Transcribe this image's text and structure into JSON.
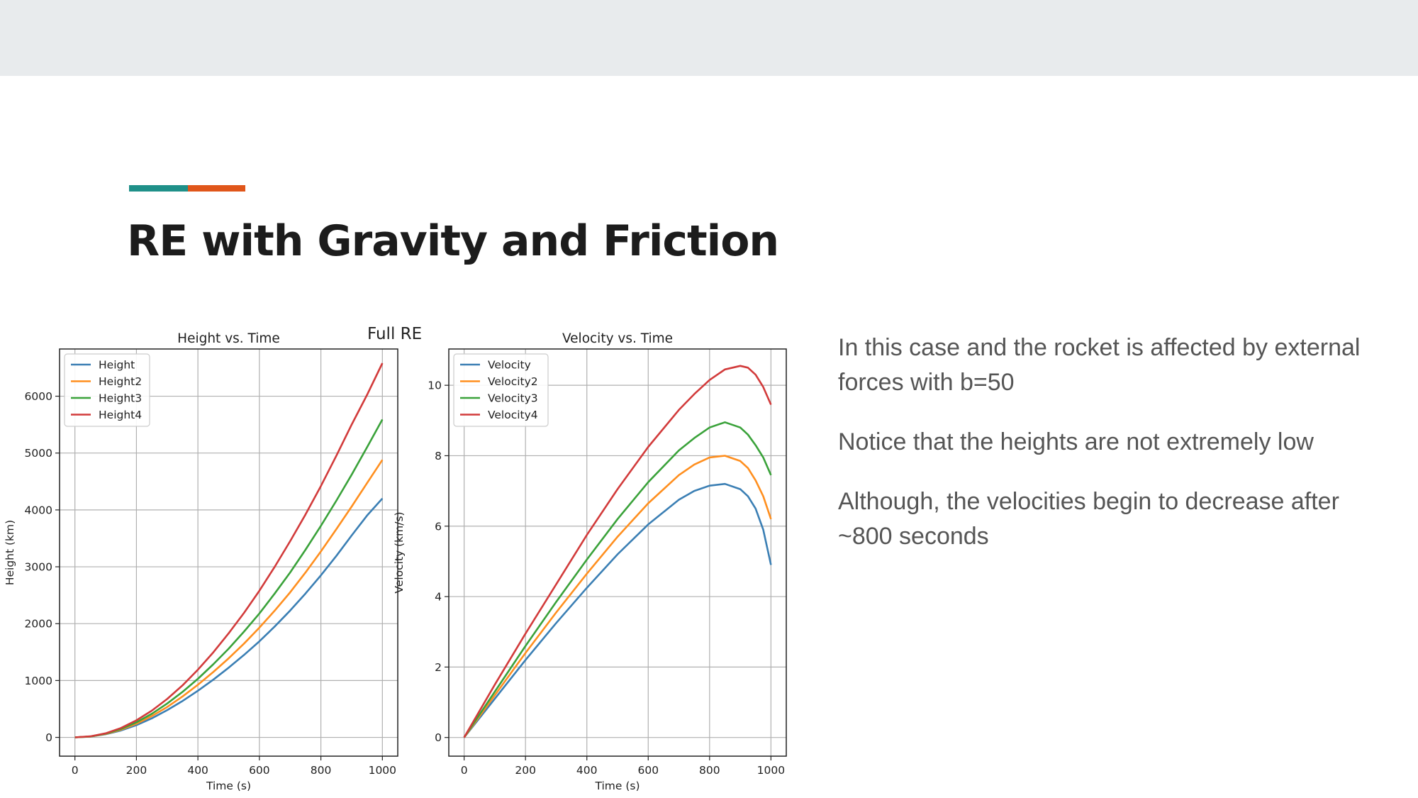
{
  "slide": {
    "title": "RE with Gravity and Friction",
    "figure_label": "Full RE",
    "accent_colors": [
      "#1f9089",
      "#e0561a"
    ],
    "paragraphs": [
      "In this case and the rocket is affected by external forces with b=50",
      "Notice that the heights are not extremely low",
      "Although, the velocities begin to decrease after ~800 seconds"
    ]
  },
  "colors": {
    "series": [
      "#3b7fb4",
      "#ff8f1f",
      "#3aa23a",
      "#d23b3b"
    ],
    "grid": "#b0b0b0"
  },
  "chart_data": [
    {
      "type": "line",
      "title": "Height vs. Time",
      "xlabel": "Time (s)",
      "ylabel": "Height (km)",
      "xlim": [
        -50,
        1050
      ],
      "ylim": [
        -330,
        6830
      ],
      "xticks": [
        0,
        200,
        400,
        600,
        800,
        1000
      ],
      "yticks": [
        0,
        1000,
        2000,
        3000,
        4000,
        5000,
        6000
      ],
      "grid": true,
      "legend_position": "upper-left",
      "x": [
        0,
        50,
        100,
        150,
        200,
        250,
        300,
        350,
        400,
        450,
        500,
        550,
        600,
        650,
        700,
        750,
        800,
        850,
        900,
        950,
        1000
      ],
      "series": [
        {
          "name": "Height",
          "values": [
            0,
            14,
            55,
            122,
            215,
            335,
            480,
            640,
            820,
            1015,
            1225,
            1450,
            1690,
            1950,
            2230,
            2530,
            2850,
            3190,
            3550,
            3900,
            4200
          ]
        },
        {
          "name": "Height2",
          "values": [
            0,
            15,
            60,
            135,
            240,
            375,
            535,
            720,
            925,
            1150,
            1390,
            1650,
            1930,
            2230,
            2550,
            2900,
            3270,
            3660,
            4060,
            4470,
            4880
          ]
        },
        {
          "name": "Height3",
          "values": [
            0,
            16,
            65,
            148,
            265,
            415,
            595,
            800,
            1030,
            1285,
            1560,
            1860,
            2180,
            2530,
            2900,
            3300,
            3720,
            4160,
            4620,
            5100,
            5590
          ]
        },
        {
          "name": "Height4",
          "values": [
            0,
            18,
            72,
            165,
            300,
            470,
            675,
            915,
            1190,
            1495,
            1830,
            2190,
            2580,
            3000,
            3450,
            3920,
            4420,
            4950,
            5500,
            6020,
            6580
          ]
        }
      ]
    },
    {
      "type": "line",
      "title": "Velocity vs. Time",
      "xlabel": "Time (s)",
      "ylabel": "Velocity (km/s)",
      "xlim": [
        -50,
        1050
      ],
      "ylim": [
        -0.53,
        11.03
      ],
      "xticks": [
        0,
        200,
        400,
        600,
        800,
        1000
      ],
      "yticks": [
        0,
        2,
        4,
        6,
        8,
        10
      ],
      "grid": true,
      "legend_position": "upper-left",
      "x": [
        0,
        100,
        200,
        300,
        400,
        500,
        600,
        700,
        750,
        800,
        850,
        900,
        925,
        950,
        975,
        1000
      ],
      "series": [
        {
          "name": "Velocity",
          "values": [
            0,
            1.1,
            2.2,
            3.25,
            4.25,
            5.2,
            6.05,
            6.75,
            7.0,
            7.15,
            7.2,
            7.05,
            6.85,
            6.5,
            5.9,
            4.9
          ]
        },
        {
          "name": "Velocity2",
          "values": [
            0,
            1.2,
            2.4,
            3.55,
            4.65,
            5.7,
            6.65,
            7.45,
            7.75,
            7.95,
            8.0,
            7.85,
            7.65,
            7.3,
            6.85,
            6.2
          ]
        },
        {
          "name": "Velocity3",
          "values": [
            0,
            1.3,
            2.6,
            3.85,
            5.05,
            6.2,
            7.25,
            8.15,
            8.5,
            8.8,
            8.95,
            8.8,
            8.6,
            8.3,
            7.95,
            7.45
          ]
        },
        {
          "name": "Velocity4",
          "values": [
            0,
            1.5,
            2.95,
            4.35,
            5.75,
            7.05,
            8.25,
            9.3,
            9.75,
            10.15,
            10.45,
            10.55,
            10.5,
            10.3,
            9.95,
            9.45
          ]
        }
      ]
    }
  ]
}
